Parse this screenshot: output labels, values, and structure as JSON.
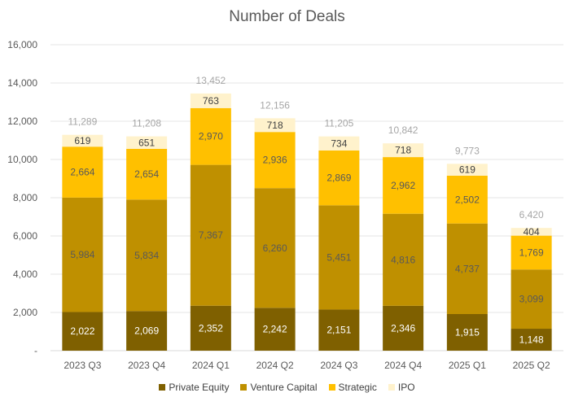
{
  "chart_data": {
    "type": "bar",
    "stacked": true,
    "title": "Number of Deals",
    "categories": [
      "2023 Q3",
      "2023 Q4",
      "2024 Q1",
      "2024 Q2",
      "2024 Q3",
      "2024 Q4",
      "2025 Q1",
      "2025 Q2"
    ],
    "series": [
      {
        "name": "Private Equity",
        "color": "#7f6000",
        "label_color": "#ffffff",
        "values": [
          2022,
          2069,
          2352,
          2242,
          2151,
          2346,
          1915,
          1148
        ]
      },
      {
        "name": "Venture Capital",
        "color": "#bf9000",
        "label_color": "#595959",
        "values": [
          5984,
          5834,
          7367,
          6260,
          5451,
          4816,
          4737,
          3099
        ]
      },
      {
        "name": "Strategic",
        "color": "#ffc000",
        "label_color": "#595959",
        "values": [
          2664,
          2654,
          2970,
          2936,
          2869,
          2962,
          2502,
          1769
        ]
      },
      {
        "name": "IPO",
        "color": "#fff2cc",
        "label_color": "#404040",
        "values": [
          619,
          651,
          763,
          718,
          734,
          718,
          619,
          404
        ]
      }
    ],
    "totals": [
      11289,
      11208,
      13452,
      12156,
      11205,
      10842,
      9773,
      6420
    ],
    "ylim": [
      0,
      16000
    ],
    "yticks": [
      0,
      2000,
      4000,
      6000,
      8000,
      10000,
      12000,
      14000,
      16000
    ],
    "gridlines": true,
    "legend_position": "bottom",
    "xlabel": "",
    "ylabel": ""
  }
}
